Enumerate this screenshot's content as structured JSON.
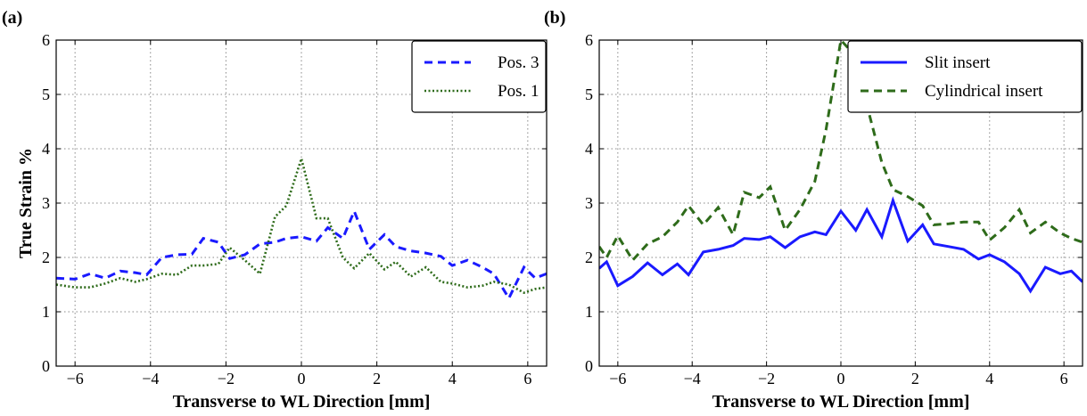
{
  "chart_data": [
    {
      "panel": "(a)",
      "type": "line",
      "xlabel": "Transverse to WL Direction [mm]",
      "ylabel": "True Strain %",
      "xlim": [
        -6.5,
        6.5
      ],
      "ylim": [
        0,
        6
      ],
      "xticks": [
        -6,
        -4,
        -2,
        0,
        2,
        4,
        6
      ],
      "yticks": [
        0,
        1,
        2,
        3,
        4,
        5,
        6
      ],
      "grid": true,
      "legend": "top-right",
      "series": [
        {
          "name": "Pos. 3",
          "color": "#1a1aff",
          "style": "dashed",
          "x": [
            -6.5,
            -6.0,
            -5.6,
            -5.2,
            -4.8,
            -4.4,
            -4.1,
            -3.7,
            -3.3,
            -2.9,
            -2.6,
            -2.2,
            -1.9,
            -1.5,
            -1.1,
            -0.7,
            -0.4,
            0.0,
            0.4,
            0.7,
            1.1,
            1.4,
            1.8,
            2.2,
            2.5,
            2.9,
            3.3,
            3.7,
            4.0,
            4.4,
            4.8,
            5.1,
            5.5,
            5.9,
            6.2,
            6.5
          ],
          "y": [
            1.62,
            1.6,
            1.7,
            1.62,
            1.75,
            1.72,
            1.68,
            2.0,
            2.05,
            2.06,
            2.35,
            2.28,
            1.98,
            2.05,
            2.25,
            2.28,
            2.35,
            2.38,
            2.3,
            2.55,
            2.35,
            2.85,
            2.15,
            2.42,
            2.2,
            2.12,
            2.08,
            2.02,
            1.85,
            1.95,
            1.82,
            1.7,
            1.25,
            1.82,
            1.62,
            1.7
          ]
        },
        {
          "name": "Pos. 1",
          "color": "#2e6b1a",
          "style": "dotted",
          "x": [
            -6.5,
            -6.0,
            -5.6,
            -5.2,
            -4.8,
            -4.4,
            -4.1,
            -3.7,
            -3.3,
            -2.9,
            -2.6,
            -2.2,
            -1.9,
            -1.5,
            -1.1,
            -0.7,
            -0.4,
            0.0,
            0.4,
            0.7,
            1.1,
            1.4,
            1.8,
            2.2,
            2.5,
            2.9,
            3.3,
            3.7,
            4.0,
            4.4,
            4.8,
            5.1,
            5.5,
            5.9,
            6.2,
            6.5
          ],
          "y": [
            1.5,
            1.45,
            1.45,
            1.52,
            1.62,
            1.55,
            1.6,
            1.7,
            1.68,
            1.85,
            1.85,
            1.88,
            2.18,
            1.95,
            1.7,
            2.75,
            2.95,
            3.82,
            2.72,
            2.72,
            2.0,
            1.8,
            2.08,
            1.78,
            1.92,
            1.65,
            1.82,
            1.55,
            1.52,
            1.45,
            1.48,
            1.55,
            1.5,
            1.35,
            1.42,
            1.45
          ]
        }
      ]
    },
    {
      "panel": "(b)",
      "type": "line",
      "xlabel": "Transverse to WL Direction [mm]",
      "ylabel": "",
      "xlim": [
        -6.5,
        6.5
      ],
      "ylim": [
        0,
        6
      ],
      "xticks": [
        -6,
        -4,
        -2,
        0,
        2,
        4,
        6
      ],
      "yticks": [
        0,
        1,
        2,
        3,
        4,
        5,
        6
      ],
      "grid": true,
      "legend": "top-right",
      "series": [
        {
          "name": "Slit insert",
          "color": "#1a1aff",
          "style": "solid",
          "x": [
            -6.5,
            -6.3,
            -6.0,
            -5.6,
            -5.2,
            -4.8,
            -4.4,
            -4.1,
            -3.7,
            -3.3,
            -2.9,
            -2.6,
            -2.2,
            -1.9,
            -1.5,
            -1.1,
            -0.7,
            -0.4,
            0.0,
            0.4,
            0.7,
            1.1,
            1.4,
            1.8,
            2.2,
            2.5,
            2.9,
            3.3,
            3.7,
            4.0,
            4.4,
            4.8,
            5.1,
            5.5,
            5.9,
            6.2,
            6.5
          ],
          "y": [
            1.8,
            1.92,
            1.48,
            1.65,
            1.9,
            1.68,
            1.88,
            1.68,
            2.1,
            2.15,
            2.22,
            2.35,
            2.33,
            2.38,
            2.18,
            2.38,
            2.47,
            2.42,
            2.85,
            2.5,
            2.88,
            2.38,
            3.05,
            2.3,
            2.6,
            2.25,
            2.2,
            2.15,
            1.97,
            2.05,
            1.92,
            1.7,
            1.38,
            1.82,
            1.7,
            1.75,
            1.55
          ]
        },
        {
          "name": "Cylindrical insert",
          "color": "#2e6b1a",
          "style": "dashed",
          "x": [
            -6.5,
            -6.3,
            -6.0,
            -5.6,
            -5.2,
            -4.8,
            -4.4,
            -4.1,
            -3.7,
            -3.3,
            -2.9,
            -2.6,
            -2.2,
            -1.9,
            -1.5,
            -1.1,
            -0.7,
            -0.4,
            0.0,
            0.4,
            0.7,
            1.1,
            1.4,
            1.8,
            2.2,
            2.5,
            2.9,
            3.3,
            3.7,
            4.0,
            4.4,
            4.8,
            5.1,
            5.5,
            5.9,
            6.2,
            6.5
          ],
          "y": [
            2.2,
            2.0,
            2.4,
            1.95,
            2.25,
            2.38,
            2.65,
            2.95,
            2.6,
            2.92,
            2.42,
            3.2,
            3.1,
            3.3,
            2.5,
            2.88,
            3.4,
            4.35,
            6.0,
            5.7,
            4.8,
            3.75,
            3.25,
            3.12,
            2.95,
            2.6,
            2.62,
            2.65,
            2.65,
            2.32,
            2.55,
            2.88,
            2.45,
            2.65,
            2.45,
            2.35,
            2.28
          ]
        }
      ]
    }
  ]
}
